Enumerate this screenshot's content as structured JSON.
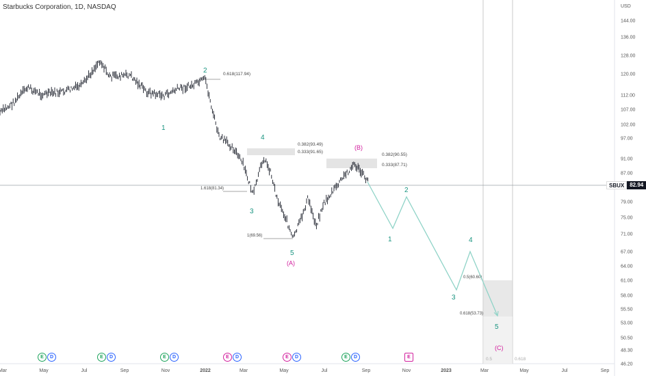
{
  "header": {
    "title": "Starbucks Corporation, 1D, NASDAQ"
  },
  "price_axis": {
    "currency": "USD",
    "ticks": [
      "144.00",
      "136.00",
      "128.00",
      "120.00",
      "112.00",
      "107.00",
      "102.00",
      "97.00",
      "91.00",
      "87.00",
      "79.00",
      "75.00",
      "71.00",
      "67.00",
      "64.00",
      "61.00",
      "58.00",
      "55.50",
      "53.00",
      "50.50",
      "48.30",
      "46.20"
    ]
  },
  "time_axis": {
    "ticks": [
      "Mar",
      "May",
      "Jul",
      "Sep",
      "Nov",
      "2022",
      "Mar",
      "May",
      "Jul",
      "Sep",
      "Nov",
      "2023",
      "Mar",
      "May",
      "Jul",
      "Sep"
    ]
  },
  "current": {
    "symbol": "SBUX",
    "price": "82.94"
  },
  "fib_labels": [
    "0.618(117.94)",
    "0.382(93.49)",
    "0.333(91.65)",
    "0.382(90.55)",
    "0.333(87.71)",
    "1.618(81.34)",
    "1(69.56)",
    "0.5(60.60)",
    "0.618(53.73)"
  ],
  "wave_labels": [
    "1",
    "2",
    "3",
    "4",
    "5",
    "(A)",
    "(B)",
    "1",
    "2",
    "3",
    "4",
    "5",
    "(C)"
  ],
  "bottom_fib": [
    "0.5",
    "0.618"
  ],
  "events": [
    "E",
    "D",
    "E",
    "D",
    "E",
    "D",
    "E",
    "D",
    "E",
    "D",
    "E",
    "D",
    "E"
  ],
  "colors": {
    "wave_green": "#17937f",
    "wave_magenta": "#d21e9d",
    "projection_line": "#8fd3c7",
    "fib_zone": "#d9d9d9",
    "candle": "#131722",
    "axis_text": "#555555"
  }
}
